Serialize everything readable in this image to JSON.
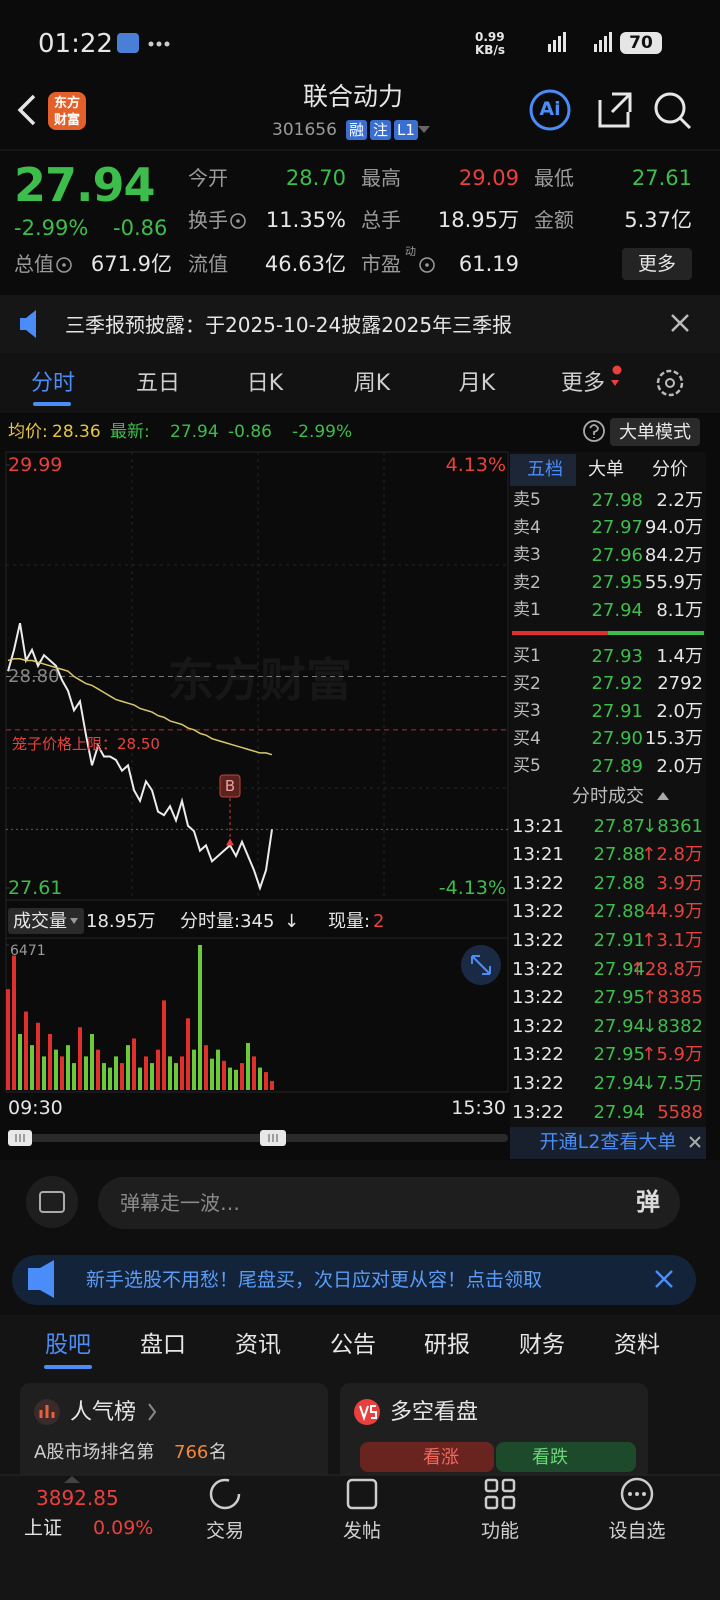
{
  "status_bar": {
    "time": "01:22",
    "net_speed": [
      "0.99",
      "KB/s"
    ],
    "battery": "70"
  },
  "header": {
    "logo": [
      "东方",
      "财富"
    ],
    "title": "联合动力",
    "code": "301656",
    "tags": [
      "融",
      "注",
      "L1"
    ],
    "ai": "Ai"
  },
  "quote": {
    "price": "27.94",
    "change_pct": "-2.99%",
    "change": "-0.86",
    "rows": [
      [
        {
          "label": "今开",
          "value": "28.70",
          "color": "#3dbd4c"
        },
        {
          "label": "最高",
          "value": "29.09",
          "color": "#e8413d"
        },
        {
          "label": "最低",
          "value": "27.61",
          "color": "#3dbd4c"
        }
      ],
      [
        {
          "label": "换手",
          "value": "11.35%",
          "color": "#e6e6e6",
          "info_icon": true
        },
        {
          "label": "总手",
          "value": "18.95万",
          "color": "#e6e6e6"
        },
        {
          "label": "金额",
          "value": "5.37亿",
          "color": "#e6e6e6"
        }
      ],
      [
        {
          "label": "总值",
          "value": "671.9亿",
          "color": "#e6e6e6",
          "info_icon": true
        },
        {
          "label": "流值",
          "value": "46.63亿",
          "color": "#e6e6e6"
        },
        {
          "label": "市盈",
          "value": "61.19",
          "color": "#e6e6e6",
          "superscript": "动",
          "info_icon": true
        }
      ]
    ],
    "more": "更多"
  },
  "notice": {
    "text": "三季报预披露：于2025-10-24披露2025年三季报"
  },
  "tabs": [
    "分时",
    "五日",
    "日K",
    "周K",
    "月K",
    "更多"
  ],
  "chart_info": {
    "avg_label": "均价:",
    "avg": "28.36",
    "latest_label": "最新:",
    "latest": "27.94",
    "change": "-0.86",
    "change_pct": "-2.99%",
    "mode": "大单模式"
  },
  "chart_data": [
    {
      "type": "line",
      "watermark": "东方财富",
      "ylim": [
        27.61,
        29.99
      ],
      "yticks": [
        29.99,
        27.61
      ],
      "y_pct_labels": [
        "4.13%",
        "-4.13%"
      ],
      "ref_line": {
        "value": 28.8,
        "label": "28.80"
      },
      "cage": {
        "value": 28.5,
        "label": "笼子价格上限：28.50"
      },
      "latest_line": 27.94,
      "marker": {
        "label": "B",
        "at": 37
      },
      "x_labels": [
        "09:30",
        "15:30"
      ],
      "series": [
        {
          "color": "#ececec",
          "values": [
            28.83,
            28.95,
            29.1,
            28.89,
            28.95,
            28.86,
            28.92,
            28.89,
            28.86,
            28.78,
            28.72,
            28.61,
            28.66,
            28.47,
            28.3,
            28.41,
            28.35,
            28.35,
            28.33,
            28.27,
            28.3,
            28.16,
            28.1,
            28.21,
            28.16,
            28.04,
            28.02,
            28.07,
            27.99,
            28.1,
            27.96,
            27.93,
            27.82,
            27.85,
            27.76,
            27.79,
            27.82,
            27.85,
            27.79,
            27.87,
            27.79,
            27.71,
            27.61,
            27.71,
            27.94
          ]
        },
        {
          "color": "#d9c76a",
          "values": [
            28.89,
            28.9,
            28.9,
            28.89,
            28.89,
            28.88,
            28.87,
            28.86,
            28.85,
            28.84,
            28.83,
            28.8,
            28.78,
            28.76,
            28.75,
            28.73,
            28.71,
            28.69,
            28.67,
            28.66,
            28.65,
            28.64,
            28.62,
            28.61,
            28.6,
            28.58,
            28.57,
            28.55,
            28.54,
            28.53,
            28.51,
            28.5,
            28.48,
            28.47,
            28.45,
            28.44,
            28.43,
            28.42,
            28.41,
            28.4,
            28.39,
            28.38,
            28.37,
            28.37,
            28.36
          ]
        }
      ]
    },
    {
      "type": "bar",
      "title": "成交量",
      "total": "18.95万",
      "tick_volume": "分时量:345",
      "tick_dir": "↓",
      "current_label": "现量:",
      "current": "2",
      "ylim": [
        0,
        6471
      ],
      "yticks": [
        6471
      ],
      "values": [
        4500,
        6000,
        2500,
        3500,
        2000,
        3000,
        1500,
        2500,
        1800,
        1500,
        2000,
        1200,
        2800,
        1500,
        2500,
        1800,
        1200,
        1000,
        1500,
        1200,
        2000,
        2300,
        1000,
        1500,
        1200,
        1800,
        4000,
        1500,
        1200,
        1500,
        3200,
        1800,
        6471,
        2000,
        1400,
        1800,
        1300,
        1000,
        900,
        1200,
        2100,
        1500,
        1000,
        800,
        400
      ],
      "colors": [
        "#e0302b",
        "#e0302b",
        "#6cc93a",
        "#e0302b",
        "#6cc93a",
        "#e0302b",
        "#6cc93a",
        "#e0302b",
        "#6cc93a",
        "#e0302b",
        "#6cc93a",
        "#6cc93a",
        "#e0302b",
        "#6cc93a",
        "#6cc93a",
        "#e0302b",
        "#6cc93a",
        "#6cc93a",
        "#6cc93a",
        "#e0302b",
        "#6cc93a",
        "#e0302b",
        "#6cc93a",
        "#e0302b",
        "#6cc93a",
        "#e0302b",
        "#e0302b",
        "#6cc93a",
        "#6cc93a",
        "#e0302b",
        "#e0302b",
        "#6cc93a",
        "#6cc93a",
        "#e0302b",
        "#6cc93a",
        "#6cc93a",
        "#e0302b",
        "#6cc93a",
        "#6cc93a",
        "#e0302b",
        "#6cc93a",
        "#e0302b",
        "#6cc93a",
        "#e0302b",
        "#e0302b"
      ]
    }
  ],
  "order_book": {
    "tabs": [
      "五档",
      "大单",
      "分价"
    ],
    "asks": [
      [
        "卖5",
        "27.98",
        "2.2万"
      ],
      [
        "卖4",
        "27.97",
        "94.0万"
      ],
      [
        "卖3",
        "27.96",
        "84.2万"
      ],
      [
        "卖2",
        "27.95",
        "55.9万"
      ],
      [
        "卖1",
        "27.94",
        "8.1万"
      ]
    ],
    "bids": [
      [
        "买1",
        "27.93",
        "1.4万"
      ],
      [
        "买2",
        "27.92",
        "2792"
      ],
      [
        "买3",
        "27.91",
        "2.0万"
      ],
      [
        "买4",
        "27.90",
        "15.3万"
      ],
      [
        "买5",
        "27.89",
        "2.0万"
      ]
    ],
    "trades_title": "分时成交",
    "trades": [
      {
        "time": "13:21",
        "price": "27.87",
        "dir": "↓",
        "vol": "8361",
        "color": "#3dbd4c"
      },
      {
        "time": "13:21",
        "price": "27.88",
        "dir": "↑",
        "vol": "2.8万",
        "color": "#e8413d"
      },
      {
        "time": "13:22",
        "price": "27.88",
        "vol": "3.9万",
        "color": "#e8413d"
      },
      {
        "time": "13:22",
        "price": "27.88",
        "vol": "44.9万",
        "color": "#e8413d"
      },
      {
        "time": "13:22",
        "price": "27.91",
        "dir": "↑",
        "vol": "3.1万",
        "color": "#e8413d"
      },
      {
        "time": "13:22",
        "price": "27.94",
        "dir": "↑",
        "vol": "28.8万",
        "color": "#e8413d"
      },
      {
        "time": "13:22",
        "price": "27.95",
        "dir": "↑",
        "vol": "8385",
        "color": "#e8413d"
      },
      {
        "time": "13:22",
        "price": "27.94",
        "dir": "↓",
        "vol": "8382",
        "color": "#3dbd4c"
      },
      {
        "time": "13:22",
        "price": "27.95",
        "dir": "↑",
        "vol": "5.9万",
        "color": "#e8413d"
      },
      {
        "time": "13:22",
        "price": "27.94",
        "dir": "↓",
        "vol": "7.5万",
        "color": "#3dbd4c"
      },
      {
        "time": "13:22",
        "price": "27.94",
        "vol": "5588",
        "color": "#e8413d"
      }
    ],
    "l2": "开通L2查看大单"
  },
  "comment": {
    "placeholder": "弹幕走一波…",
    "button": "弹"
  },
  "banner": {
    "text": "新手选股不用愁！尾盘买，次日应对更从容！点击领取"
  },
  "section_tabs": [
    "股吧",
    "盘口",
    "资讯",
    "公告",
    "研报",
    "财务",
    "资料"
  ],
  "cards": {
    "rank": {
      "title": "人气榜",
      "text": "A股市场排名第",
      "rank": "766",
      "suffix": "名"
    },
    "bull_bear": {
      "title": "多空看盘",
      "up": "看涨",
      "down": "看跌"
    }
  },
  "nav": {
    "index_value": "3892.85",
    "index_name": "上证",
    "index_change": "0.09%",
    "items": [
      "交易",
      "发帖",
      "功能",
      "设自选"
    ]
  }
}
